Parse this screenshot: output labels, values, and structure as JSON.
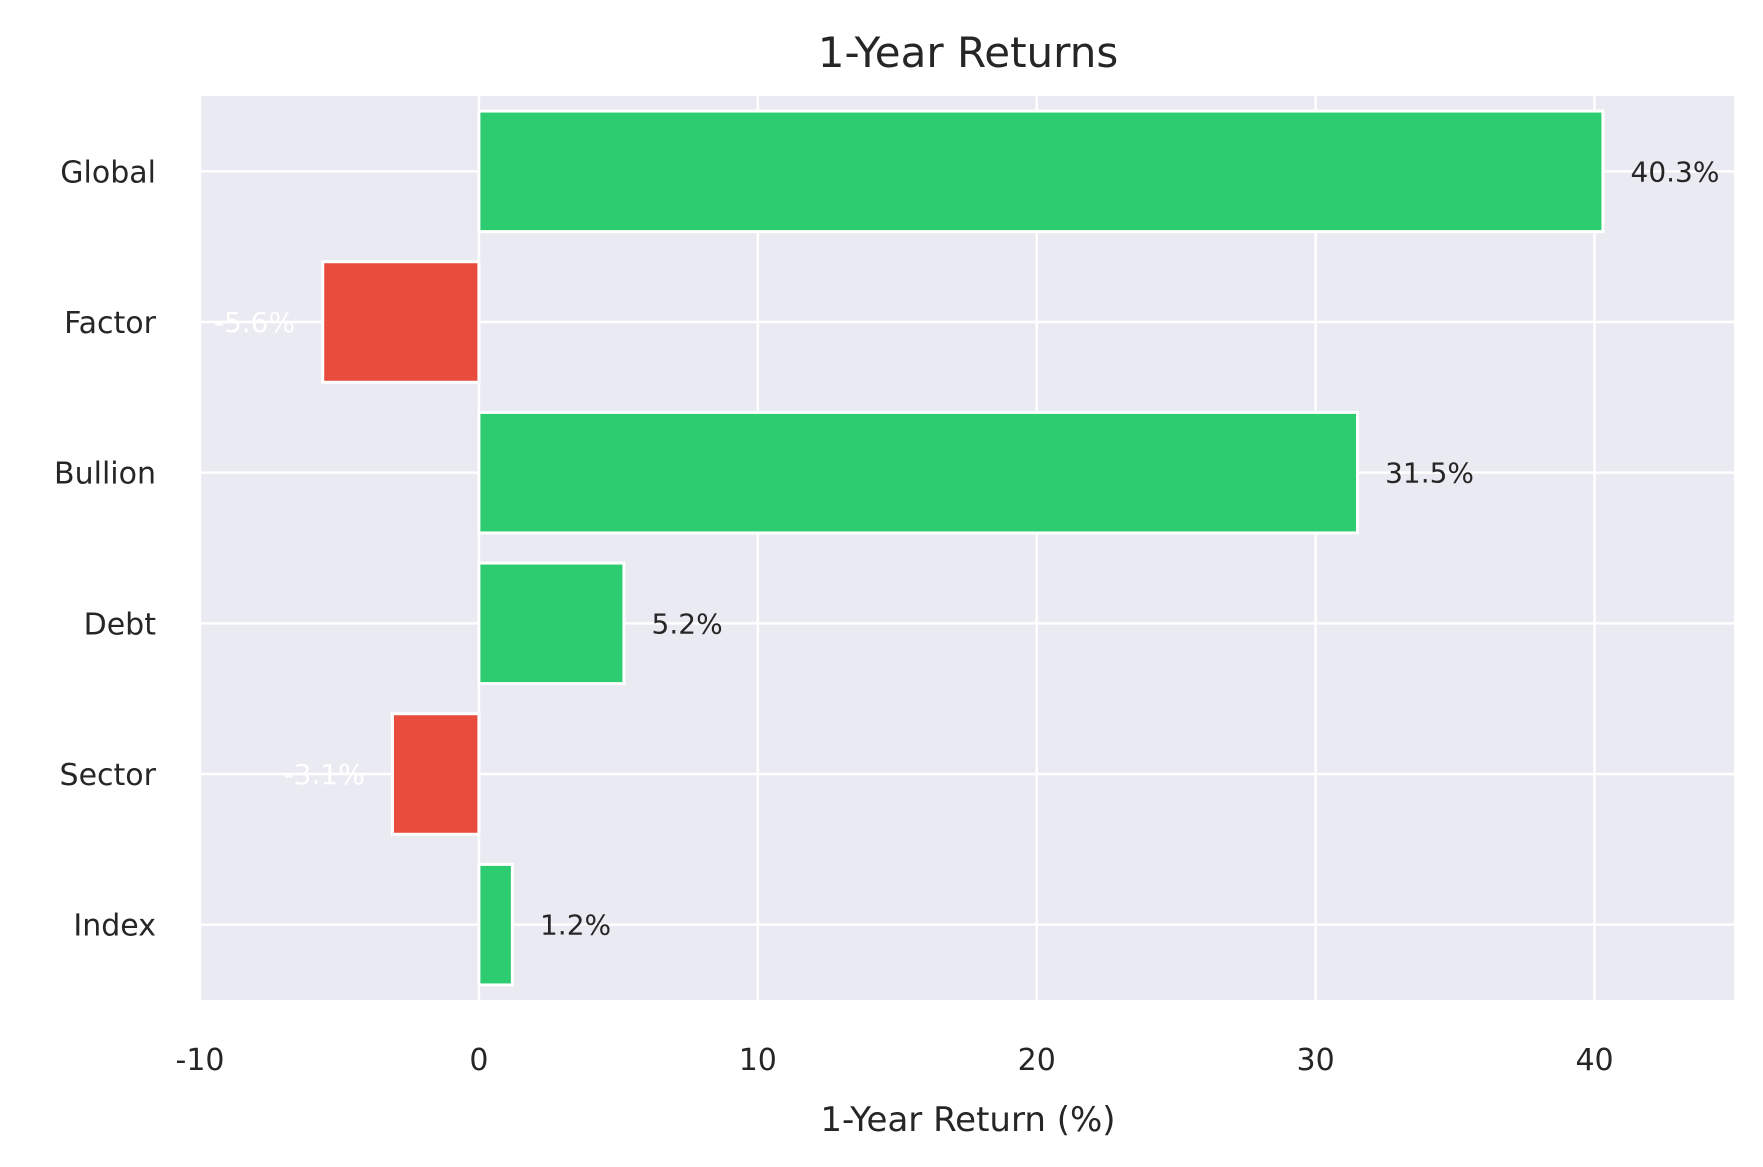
{
  "chart_data": {
    "type": "bar",
    "orientation": "horizontal",
    "title": "1-Year Returns",
    "xlabel": "1-Year Return (%)",
    "ylabel": "",
    "categories": [
      "Global",
      "Factor",
      "Bullion",
      "Debt",
      "Sector",
      "Index"
    ],
    "values": [
      40.3,
      -5.6,
      31.5,
      5.2,
      -3.1,
      1.2
    ],
    "data_labels": [
      "40.3%",
      "-5.6%",
      "31.5%",
      "5.2%",
      "-3.1%",
      "1.2%"
    ],
    "xlim": [
      -10,
      45
    ],
    "xticks": [
      -10,
      0,
      10,
      20,
      30,
      40
    ],
    "xtick_labels": [
      "-10",
      "0",
      "10",
      "20",
      "30",
      "40"
    ],
    "grid": true,
    "colors": {
      "positive": "#2ecc71",
      "negative": "#e74c3c",
      "plot_background": "#eaeaf2",
      "grid": "#ffffff",
      "text": "#262626",
      "label_on_dark": "#ffffff"
    }
  }
}
